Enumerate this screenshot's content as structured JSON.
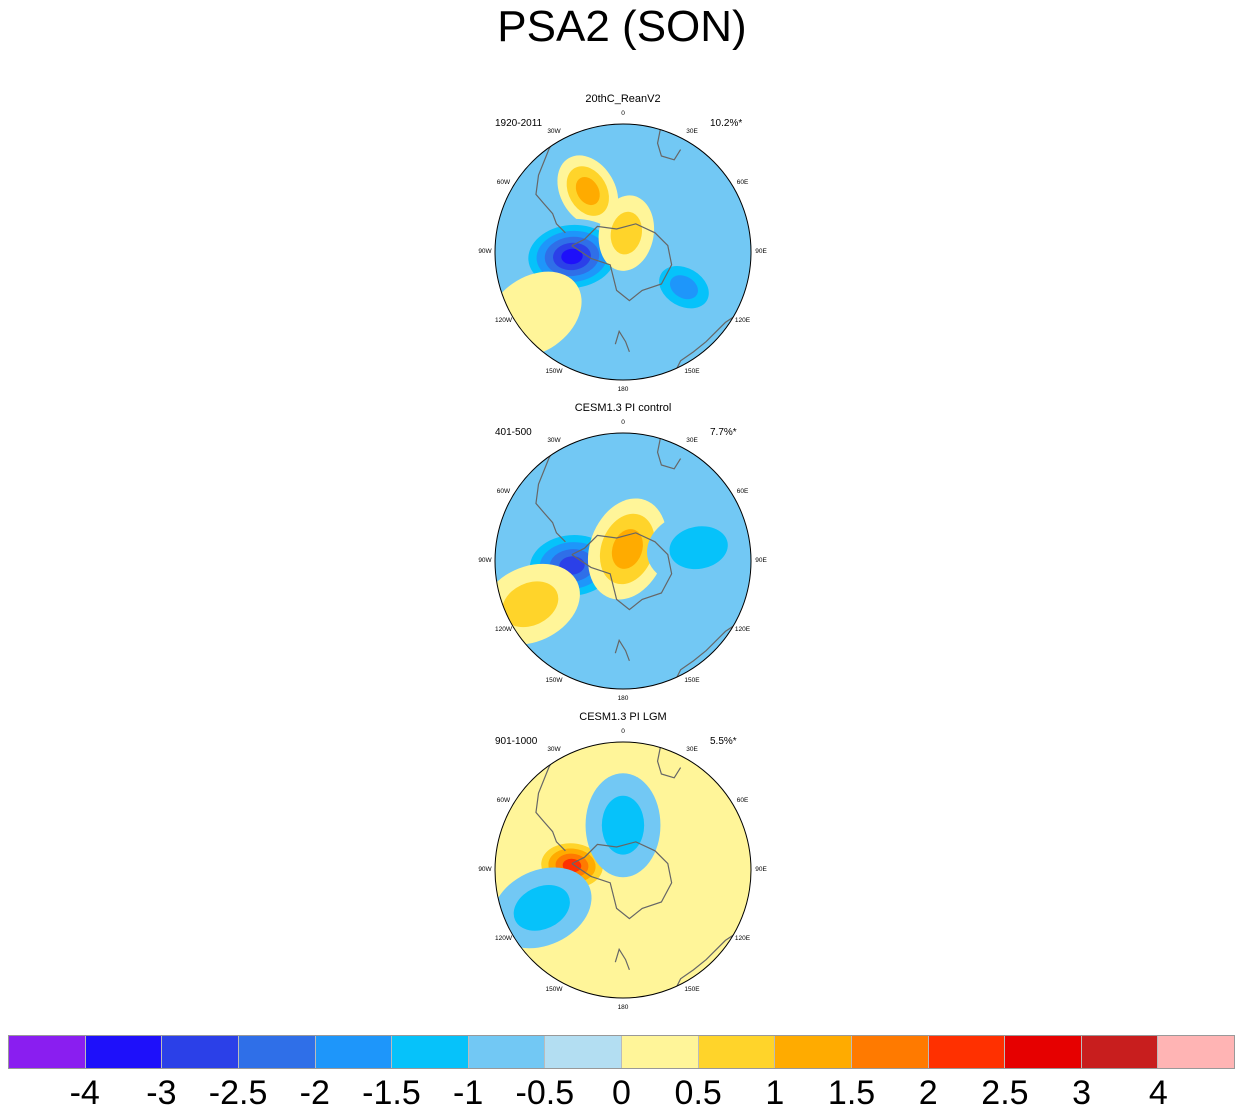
{
  "title": "PSA2 (SON)",
  "panels": [
    {
      "name": "20thC_ReanV2",
      "period": "1920-2011",
      "variance": "10.2%*",
      "longitude_labels": [
        "0",
        "30E",
        "60E",
        "90E",
        "120E",
        "150E",
        "180",
        "150W",
        "120W",
        "90W",
        "60W",
        "30W"
      ],
      "anomalies": [
        {
          "level": 1.5,
          "lon": -30,
          "colat": 0.55,
          "extent": "medium"
        },
        {
          "level": -3,
          "lon": -95,
          "colat": 0.4,
          "extent": "large"
        },
        {
          "level": 1,
          "lon": 10,
          "colat": 0.15,
          "extent": "medium"
        },
        {
          "level": -1.5,
          "lon": 120,
          "colat": 0.55,
          "extent": "medium"
        },
        {
          "level": 0.5,
          "lon": -125,
          "colat": 0.85,
          "extent": "large"
        }
      ]
    },
    {
      "name": "CESM1.3 PI control",
      "period": "401-500",
      "variance": "7.7%*",
      "longitude_labels": [
        "0",
        "30E",
        "60E",
        "90E",
        "120E",
        "150E",
        "180",
        "150W",
        "120W",
        "90W",
        "60W",
        "30W"
      ],
      "anomalies": [
        {
          "level": -2.5,
          "lon": -95,
          "colat": 0.4,
          "extent": "large"
        },
        {
          "level": 1.5,
          "lon": 20,
          "colat": 0.1,
          "extent": "large"
        },
        {
          "level": 1,
          "lon": -115,
          "colat": 0.8,
          "extent": "large"
        },
        {
          "level": -1,
          "lon": 80,
          "colat": 0.6,
          "extent": "large"
        }
      ]
    },
    {
      "name": "CESM1.3 PI LGM",
      "period": "901-1000",
      "variance": "5.5%*",
      "longitude_labels": [
        "0",
        "30E",
        "60E",
        "90E",
        "120E",
        "150E",
        "180",
        "150W",
        "120W",
        "90W",
        "60W",
        "30W"
      ],
      "anomalies": [
        {
          "level": 2.5,
          "lon": -85,
          "colat": 0.4,
          "extent": "medium"
        },
        {
          "level": -1,
          "lon": 0,
          "colat": 0.35,
          "extent": "large"
        },
        {
          "level": -1,
          "lon": -115,
          "colat": 0.7,
          "extent": "large"
        },
        {
          "level": 0.5,
          "lon": 90,
          "colat": 0.7,
          "extent": "medium"
        },
        {
          "level": 0.5,
          "lon": 165,
          "colat": 0.75,
          "extent": "small"
        }
      ]
    }
  ],
  "colorbar": {
    "colors": [
      "#8a1ef0",
      "#1e10fa",
      "#2b40e8",
      "#2f6fe8",
      "#1e96fa",
      "#06c2fa",
      "#72c8f4",
      "#b3def2",
      "#fff599",
      "#ffd42a",
      "#ffab00",
      "#ff7a00",
      "#ff3000",
      "#e60000",
      "#c81e1e",
      "#ffb4b4"
    ],
    "labels": [
      "-4",
      "-3",
      "-2.5",
      "-2",
      "-1.5",
      "-1",
      "-0.5",
      "0",
      "0.5",
      "1",
      "1.5",
      "2",
      "2.5",
      "3",
      "4"
    ]
  }
}
